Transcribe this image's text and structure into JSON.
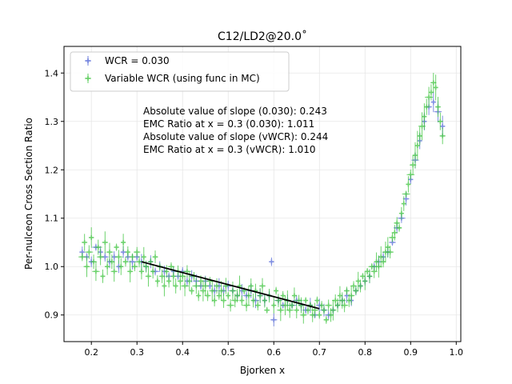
{
  "chart_data": {
    "type": "scatter",
    "title": "C12/LD2@20.0˚",
    "xlabel": "Bjorken x",
    "ylabel": "Per-nulceon Cross Section Ratio",
    "xlim": [
      0.14,
      1.01
    ],
    "ylim": [
      0.845,
      1.455
    ],
    "xticks": [
      "0.2",
      "0.3",
      "0.4",
      "0.5",
      "0.6",
      "0.7",
      "0.8",
      "0.9",
      "1.0"
    ],
    "yticks": [
      "0.9",
      "1.0",
      "1.1",
      "1.2",
      "1.3",
      "1.4"
    ],
    "grid": true,
    "legend_position": "top-left",
    "colors": {
      "series_wcr": "#4a5fd6",
      "series_vwcr": "#3cc43c",
      "fit_line": "#000000"
    },
    "series": [
      {
        "name": "WCR = 0.030",
        "marker": "plus",
        "points": [
          [
            0.18,
            1.03
          ],
          [
            0.19,
            1.02
          ],
          [
            0.2,
            1.01
          ],
          [
            0.21,
            1.04
          ],
          [
            0.22,
            1.03
          ],
          [
            0.23,
            1.02
          ],
          [
            0.24,
            1.01
          ],
          [
            0.25,
            1.02
          ],
          [
            0.26,
            1.0
          ],
          [
            0.27,
            1.03
          ],
          [
            0.28,
            1.02
          ],
          [
            0.29,
            1.01
          ],
          [
            0.3,
            1.02
          ],
          [
            0.31,
            1.01
          ],
          [
            0.32,
            1.0
          ],
          [
            0.33,
            1.01
          ],
          [
            0.34,
            0.99
          ],
          [
            0.35,
            1.0
          ],
          [
            0.36,
            0.99
          ],
          [
            0.37,
            0.98
          ],
          [
            0.38,
            0.99
          ],
          [
            0.39,
            0.98
          ],
          [
            0.4,
            0.99
          ],
          [
            0.41,
            0.97
          ],
          [
            0.42,
            0.98
          ],
          [
            0.43,
            0.97
          ],
          [
            0.44,
            0.96
          ],
          [
            0.45,
            0.97
          ],
          [
            0.46,
            0.96
          ],
          [
            0.47,
            0.95
          ],
          [
            0.48,
            0.96
          ],
          [
            0.49,
            0.95
          ],
          [
            0.5,
            0.96
          ],
          [
            0.51,
            0.95
          ],
          [
            0.52,
            0.94
          ],
          [
            0.53,
            0.95
          ],
          [
            0.54,
            0.94
          ],
          [
            0.55,
            0.95
          ],
          [
            0.56,
            0.93
          ],
          [
            0.57,
            0.94
          ],
          [
            0.58,
            0.93
          ],
          [
            0.59,
            0.94
          ],
          [
            0.595,
            1.01
          ],
          [
            0.6,
            0.89
          ],
          [
            0.61,
            0.93
          ],
          [
            0.62,
            0.92
          ],
          [
            0.63,
            0.93
          ],
          [
            0.64,
            0.92
          ],
          [
            0.65,
            0.93
          ],
          [
            0.66,
            0.92
          ],
          [
            0.67,
            0.91
          ],
          [
            0.68,
            0.92
          ],
          [
            0.69,
            0.9
          ],
          [
            0.7,
            0.92
          ],
          [
            0.71,
            0.91
          ],
          [
            0.72,
            0.9
          ],
          [
            0.73,
            0.91
          ],
          [
            0.74,
            0.92
          ],
          [
            0.75,
            0.93
          ],
          [
            0.76,
            0.94
          ],
          [
            0.77,
            0.93
          ],
          [
            0.78,
            0.95
          ],
          [
            0.79,
            0.96
          ],
          [
            0.8,
            0.97
          ],
          [
            0.81,
            0.98
          ],
          [
            0.82,
            1.0
          ],
          [
            0.83,
            1.01
          ],
          [
            0.84,
            1.02
          ],
          [
            0.85,
            1.03
          ],
          [
            0.86,
            1.05
          ],
          [
            0.87,
            1.08
          ],
          [
            0.88,
            1.1
          ],
          [
            0.89,
            1.14
          ],
          [
            0.9,
            1.18
          ],
          [
            0.91,
            1.22
          ],
          [
            0.92,
            1.26
          ],
          [
            0.93,
            1.3
          ],
          [
            0.94,
            1.33
          ],
          [
            0.95,
            1.34
          ],
          [
            0.96,
            1.32
          ],
          [
            0.97,
            1.29
          ]
        ]
      },
      {
        "name": "Variable WCR (using func in MC)",
        "marker": "plus",
        "points": [
          [
            0.18,
            1.02
          ],
          [
            0.185,
            1.05
          ],
          [
            0.19,
            1.0
          ],
          [
            0.195,
            1.03
          ],
          [
            0.2,
            1.06
          ],
          [
            0.205,
            1.01
          ],
          [
            0.21,
            0.99
          ],
          [
            0.215,
            1.04
          ],
          [
            0.22,
            1.02
          ],
          [
            0.225,
            0.98
          ],
          [
            0.23,
            1.05
          ],
          [
            0.235,
            1.0
          ],
          [
            0.24,
            1.03
          ],
          [
            0.245,
            1.01
          ],
          [
            0.25,
            0.99
          ],
          [
            0.255,
            1.04
          ],
          [
            0.26,
            1.02
          ],
          [
            0.265,
            1.0
          ],
          [
            0.27,
            1.05
          ],
          [
            0.275,
            1.01
          ],
          [
            0.28,
            1.03
          ],
          [
            0.285,
            0.99
          ],
          [
            0.29,
            1.02
          ],
          [
            0.295,
            1.0
          ],
          [
            0.3,
            1.03
          ],
          [
            0.305,
            1.01
          ],
          [
            0.31,
            0.99
          ],
          [
            0.315,
            1.02
          ],
          [
            0.32,
            1.0
          ],
          [
            0.325,
            0.98
          ],
          [
            0.33,
            1.01
          ],
          [
            0.335,
            0.99
          ],
          [
            0.34,
            1.02
          ],
          [
            0.345,
            0.97
          ],
          [
            0.35,
            1.0
          ],
          [
            0.355,
            0.98
          ],
          [
            0.36,
            0.96
          ],
          [
            0.365,
            0.99
          ],
          [
            0.37,
            0.97
          ],
          [
            0.375,
            1.0
          ],
          [
            0.38,
            0.98
          ],
          [
            0.385,
            0.96
          ],
          [
            0.39,
            0.99
          ],
          [
            0.395,
            0.97
          ],
          [
            0.4,
            0.98
          ],
          [
            0.405,
            0.96
          ],
          [
            0.41,
            0.99
          ],
          [
            0.415,
            0.97
          ],
          [
            0.42,
            0.95
          ],
          [
            0.425,
            0.98
          ],
          [
            0.43,
            0.96
          ],
          [
            0.435,
            0.94
          ],
          [
            0.44,
            0.97
          ],
          [
            0.445,
            0.95
          ],
          [
            0.45,
            0.96
          ],
          [
            0.455,
            0.94
          ],
          [
            0.46,
            0.97
          ],
          [
            0.465,
            0.95
          ],
          [
            0.47,
            0.93
          ],
          [
            0.475,
            0.96
          ],
          [
            0.48,
            0.94
          ],
          [
            0.485,
            0.95
          ],
          [
            0.49,
            0.93
          ],
          [
            0.495,
            0.96
          ],
          [
            0.5,
            0.94
          ],
          [
            0.505,
            0.92
          ],
          [
            0.51,
            0.95
          ],
          [
            0.515,
            0.93
          ],
          [
            0.52,
            0.94
          ],
          [
            0.525,
            0.96
          ],
          [
            0.53,
            0.93
          ],
          [
            0.535,
            0.95
          ],
          [
            0.54,
            0.92
          ],
          [
            0.545,
            0.94
          ],
          [
            0.55,
            0.96
          ],
          [
            0.555,
            0.93
          ],
          [
            0.56,
            0.95
          ],
          [
            0.565,
            0.92
          ],
          [
            0.57,
            0.94
          ],
          [
            0.575,
            0.96
          ],
          [
            0.58,
            0.93
          ],
          [
            0.585,
            0.91
          ],
          [
            0.59,
            0.94
          ],
          [
            0.6,
            0.92
          ],
          [
            0.605,
            0.95
          ],
          [
            0.61,
            0.93
          ],
          [
            0.615,
            0.91
          ],
          [
            0.62,
            0.94
          ],
          [
            0.625,
            0.92
          ],
          [
            0.63,
            0.93
          ],
          [
            0.635,
            0.91
          ],
          [
            0.64,
            0.92
          ],
          [
            0.645,
            0.94
          ],
          [
            0.65,
            0.91
          ],
          [
            0.655,
            0.93
          ],
          [
            0.66,
            0.92
          ],
          [
            0.665,
            0.9
          ],
          [
            0.67,
            0.93
          ],
          [
            0.675,
            0.91
          ],
          [
            0.68,
            0.92
          ],
          [
            0.685,
            0.9
          ],
          [
            0.69,
            0.91
          ],
          [
            0.695,
            0.93
          ],
          [
            0.7,
            0.9
          ],
          [
            0.705,
            0.92
          ],
          [
            0.71,
            0.91
          ],
          [
            0.715,
            0.89
          ],
          [
            0.72,
            0.92
          ],
          [
            0.725,
            0.9
          ],
          [
            0.73,
            0.91
          ],
          [
            0.735,
            0.93
          ],
          [
            0.74,
            0.92
          ],
          [
            0.745,
            0.94
          ],
          [
            0.75,
            0.93
          ],
          [
            0.755,
            0.92
          ],
          [
            0.76,
            0.95
          ],
          [
            0.765,
            0.93
          ],
          [
            0.77,
            0.94
          ],
          [
            0.775,
            0.96
          ],
          [
            0.78,
            0.95
          ],
          [
            0.785,
            0.97
          ],
          [
            0.79,
            0.96
          ],
          [
            0.795,
            0.98
          ],
          [
            0.8,
            0.97
          ],
          [
            0.805,
            0.99
          ],
          [
            0.81,
            0.98
          ],
          [
            0.815,
            1.0
          ],
          [
            0.82,
            0.99
          ],
          [
            0.825,
            1.01
          ],
          [
            0.83,
            1.0
          ],
          [
            0.835,
            1.02
          ],
          [
            0.84,
            1.01
          ],
          [
            0.845,
            1.03
          ],
          [
            0.85,
            1.04
          ],
          [
            0.855,
            1.03
          ],
          [
            0.86,
            1.06
          ],
          [
            0.865,
            1.07
          ],
          [
            0.87,
            1.09
          ],
          [
            0.875,
            1.08
          ],
          [
            0.88,
            1.11
          ],
          [
            0.885,
            1.13
          ],
          [
            0.89,
            1.15
          ],
          [
            0.895,
            1.17
          ],
          [
            0.9,
            1.19
          ],
          [
            0.905,
            1.21
          ],
          [
            0.91,
            1.23
          ],
          [
            0.915,
            1.25
          ],
          [
            0.92,
            1.27
          ],
          [
            0.925,
            1.29
          ],
          [
            0.93,
            1.31
          ],
          [
            0.935,
            1.33
          ],
          [
            0.94,
            1.35
          ],
          [
            0.945,
            1.36
          ],
          [
            0.95,
            1.38
          ],
          [
            0.955,
            1.37
          ],
          [
            0.96,
            1.33
          ],
          [
            0.965,
            1.3
          ],
          [
            0.97,
            1.27
          ]
        ]
      }
    ],
    "fit_line": {
      "x": [
        0.31,
        0.7
      ],
      "y": [
        1.01,
        0.913
      ]
    },
    "annotations": [
      "Absolute value of slope (0.030): 0.243",
      "EMC Ratio at x = 0.3 (0.030): 1.011",
      "Absolute value of slope (vWCR): 0.244",
      "EMC Ratio at x = 0.3 (vWCR): 1.010"
    ]
  }
}
